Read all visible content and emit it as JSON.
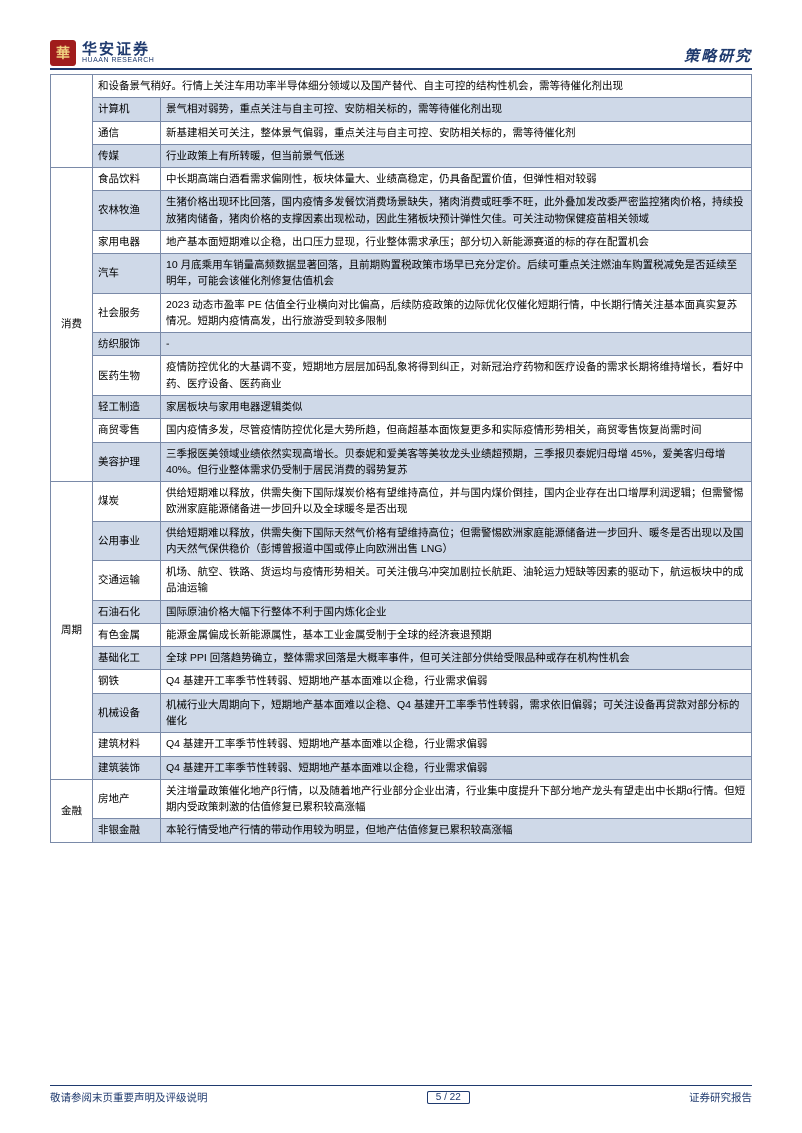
{
  "header": {
    "logo_mark": "華",
    "logo_cn": "华安证券",
    "logo_en": "HUAAN RESEARCH",
    "title": "策略研究"
  },
  "footer": {
    "left": "敬请参阅末页重要声明及评级说明",
    "page": "5 / 22",
    "right": "证券研究报告"
  },
  "colors": {
    "border": "#7a8aa8",
    "shade": "#cfd9e8",
    "header_rule": "#1f3a6e",
    "text": "#000000"
  },
  "typography": {
    "body_fontsize": 10.5,
    "header_title_fontsize": 15,
    "line_height": 1.55
  },
  "rows": [
    {
      "category": "",
      "category_rowspan": 0,
      "sector": "",
      "sector_shade": false,
      "desc": "和设备景气稍好。行情上关注车用功率半导体细分领域以及国产替代、自主可控的结构性机会，需等待催化剂出现",
      "desc_shade": false,
      "first_cell_colspan": 2
    },
    {
      "sector": "计算机",
      "sector_shade": true,
      "desc": "景气相对弱势，重点关注与自主可控、安防相关标的，需等待催化剂出现",
      "desc_shade": true
    },
    {
      "sector": "通信",
      "sector_shade": false,
      "desc": "新基建相关可关注，整体景气偏弱，重点关注与自主可控、安防相关标的，需等待催化剂",
      "desc_shade": false
    },
    {
      "sector": "传媒",
      "sector_shade": true,
      "desc": "行业政策上有所转暖，但当前景气低迷",
      "desc_shade": true
    },
    {
      "category": "消费",
      "category_rowspan": 10,
      "sector": "食品饮料",
      "sector_shade": false,
      "desc": "中长期高端白酒看需求偏刚性，板块体量大、业绩高稳定，仍具备配置价值，但弹性相对较弱",
      "desc_shade": false
    },
    {
      "sector": "农林牧渔",
      "sector_shade": true,
      "desc": "生猪价格出现环比回落，国内疫情多发餐饮消费场景缺失，猪肉消费或旺季不旺，此外叠加发改委严密监控猪肉价格，持续投放猪肉储备，猪肉价格的支撑因素出现松动，因此生猪板块预计弹性欠佳。可关注动物保健疫苗相关领域",
      "desc_shade": true
    },
    {
      "sector": "家用电器",
      "sector_shade": false,
      "desc": "地产基本面短期难以企稳，出口压力显现，行业整体需求承压；部分切入新能源赛道的标的存在配置机会",
      "desc_shade": false
    },
    {
      "sector": "汽车",
      "sector_shade": true,
      "desc": "10 月底乘用车销量高频数据显著回落，且前期购置税政策市场早已充分定价。后续可重点关注燃油车购置税减免是否延续至明年，可能会该催化剂修复估值机会",
      "desc_shade": true
    },
    {
      "sector": "社会服务",
      "sector_shade": false,
      "desc": "2023 动态市盈率 PE 估值全行业横向对比偏高，后续防疫政策的边际优化仅催化短期行情，中长期行情关注基本面真实复苏情况。短期内疫情高发，出行旅游受到较多限制",
      "desc_shade": false
    },
    {
      "sector": "纺织服饰",
      "sector_shade": true,
      "desc": "-",
      "desc_shade": true
    },
    {
      "sector": "医药生物",
      "sector_shade": false,
      "desc": "疫情防控优化的大基调不变，短期地方层层加码乱象将得到纠正，对新冠治疗药物和医疗设备的需求长期将维持增长，看好中药、医疗设备、医药商业",
      "desc_shade": false
    },
    {
      "sector": "轻工制造",
      "sector_shade": true,
      "desc": "家居板块与家用电器逻辑类似",
      "desc_shade": true
    },
    {
      "sector": "商贸零售",
      "sector_shade": false,
      "desc": "国内疫情多发，尽管疫情防控优化是大势所趋，但商超基本面恢复更多和实际疫情形势相关，商贸零售恢复尚需时间",
      "desc_shade": false
    },
    {
      "sector": "美容护理",
      "sector_shade": true,
      "desc": "三季报医美领域业绩依然实现高增长。贝泰妮和爱美客等美妆龙头业绩超预期，三季报贝泰妮归母增 45%，爱美客归母增 40%。但行业整体需求仍受制于居民消费的弱势复苏",
      "desc_shade": true
    },
    {
      "category": "周期",
      "category_rowspan": 10,
      "sector": "煤炭",
      "sector_shade": false,
      "desc": "供给短期难以释放，供需失衡下国际煤炭价格有望维持高位，并与国内煤价倒挂，国内企业存在出口增厚利润逻辑；但需警惕欧洲家庭能源储备进一步回升以及全球暖冬是否出现",
      "desc_shade": false
    },
    {
      "sector": "公用事业",
      "sector_shade": true,
      "desc": "供给短期难以释放，供需失衡下国际天然气价格有望维持高位；但需警惕欧洲家庭能源储备进一步回升、暖冬是否出现以及国内天然气保供稳价（彭博曾报道中国或停止向欧洲出售 LNG）",
      "desc_shade": true
    },
    {
      "sector": "交通运输",
      "sector_shade": false,
      "desc": "机场、航空、铁路、货运均与疫情形势相关。可关注俄乌冲突加剧拉长航距、油轮运力短缺等因素的驱动下，航运板块中的成品油运输",
      "desc_shade": false
    },
    {
      "sector": "石油石化",
      "sector_shade": true,
      "desc": "国际原油价格大幅下行整体不利于国内炼化企业",
      "desc_shade": true
    },
    {
      "sector": "有色金属",
      "sector_shade": false,
      "desc": "能源金属偏成长新能源属性，基本工业金属受制于全球的经济衰退预期",
      "desc_shade": false
    },
    {
      "sector": "基础化工",
      "sector_shade": true,
      "desc": "全球 PPI 回落趋势确立，整体需求回落是大概率事件，但可关注部分供给受限品种或存在机构性机会",
      "desc_shade": true
    },
    {
      "sector": "钢铁",
      "sector_shade": false,
      "desc": "Q4 基建开工率季节性转弱、短期地产基本面难以企稳，行业需求偏弱",
      "desc_shade": false
    },
    {
      "sector": "机械设备",
      "sector_shade": true,
      "desc": "机械行业大周期向下，短期地产基本面难以企稳、Q4 基建开工率季节性转弱，需求依旧偏弱；可关注设备再贷款对部分标的催化",
      "desc_shade": true
    },
    {
      "sector": "建筑材料",
      "sector_shade": false,
      "desc": "Q4 基建开工率季节性转弱、短期地产基本面难以企稳，行业需求偏弱",
      "desc_shade": false
    },
    {
      "sector": "建筑装饰",
      "sector_shade": true,
      "desc": "Q4 基建开工率季节性转弱、短期地产基本面难以企稳，行业需求偏弱",
      "desc_shade": true
    },
    {
      "category": "金融",
      "category_rowspan": 2,
      "sector": "房地产",
      "sector_shade": false,
      "desc": "关注增量政策催化地产β行情，以及随着地产行业部分企业出清，行业集中度提升下部分地产龙头有望走出中长期α行情。但短期内受政策刺激的估值修复已累积较高涨幅",
      "desc_shade": false
    },
    {
      "sector": "非银金融",
      "sector_shade": true,
      "desc": "本轮行情受地产行情的带动作用较为明显，但地产估值修复已累积较高涨幅",
      "desc_shade": true
    }
  ]
}
